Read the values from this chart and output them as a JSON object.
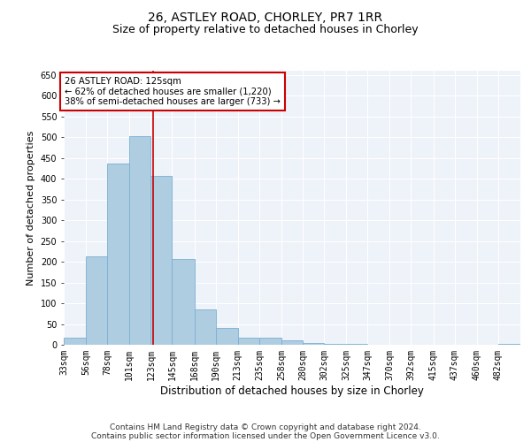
{
  "title_line1": "26, ASTLEY ROAD, CHORLEY, PR7 1RR",
  "title_line2": "Size of property relative to detached houses in Chorley",
  "xlabel": "Distribution of detached houses by size in Chorley",
  "ylabel": "Number of detached properties",
  "bar_color": "#aecde1",
  "bar_edge_color": "#7bafd4",
  "background_color": "#eef2f9",
  "grid_color": "#ffffff",
  "annotation_line_color": "#cc0000",
  "annotation_box_color": "#cc0000",
  "annotation_text": "26 ASTLEY ROAD: 125sqm\n← 62% of detached houses are smaller (1,220)\n38% of semi-detached houses are larger (733) →",
  "property_size": 125,
  "categories": [
    "33sqm",
    "56sqm",
    "78sqm",
    "101sqm",
    "123sqm",
    "145sqm",
    "168sqm",
    "190sqm",
    "213sqm",
    "235sqm",
    "258sqm",
    "280sqm",
    "302sqm",
    "325sqm",
    "347sqm",
    "370sqm",
    "392sqm",
    "415sqm",
    "437sqm",
    "460sqm",
    "482sqm"
  ],
  "bin_edges": [
    33,
    56,
    78,
    101,
    123,
    145,
    168,
    190,
    213,
    235,
    258,
    280,
    302,
    325,
    347,
    370,
    392,
    415,
    437,
    460,
    482,
    505
  ],
  "values": [
    17,
    213,
    437,
    503,
    407,
    207,
    85,
    40,
    18,
    16,
    10,
    5,
    2,
    2,
    1,
    1,
    0,
    0,
    0,
    0,
    2
  ],
  "ylim": [
    0,
    660
  ],
  "yticks": [
    0,
    50,
    100,
    150,
    200,
    250,
    300,
    350,
    400,
    450,
    500,
    550,
    600,
    650
  ],
  "footnote_line1": "Contains HM Land Registry data © Crown copyright and database right 2024.",
  "footnote_line2": "Contains public sector information licensed under the Open Government Licence v3.0.",
  "title_fontsize": 10,
  "subtitle_fontsize": 9,
  "xlabel_fontsize": 8.5,
  "ylabel_fontsize": 8,
  "tick_fontsize": 7,
  "footnote_fontsize": 6.5
}
